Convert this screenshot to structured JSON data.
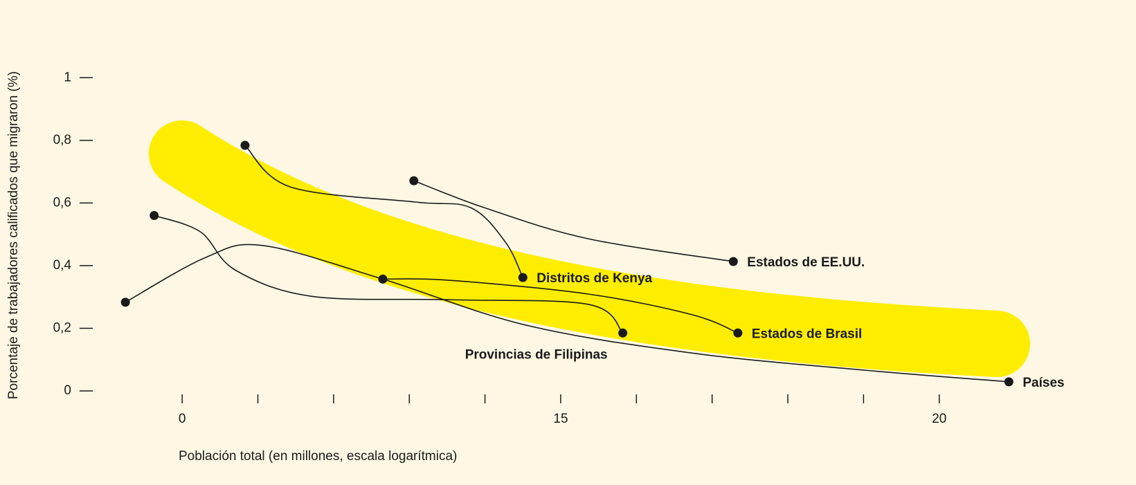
{
  "chart_data": {
    "type": "line",
    "y_label": "Porcentaje de trabajadores calificados que migraron (%)",
    "x_label": "Población total (en millones, escala logarítmica)",
    "xlim": [
      -1.3,
      11.2
    ],
    "ylim": [
      0,
      1.1
    ],
    "xticks": [
      0,
      {
        "value": 5,
        "label": "15"
      },
      {
        "value": 10,
        "label": "20"
      }
    ],
    "xminor_ticks": [
      1,
      2,
      3,
      4,
      6,
      7,
      8,
      9
    ],
    "yticks": [
      0,
      {
        "value": 0.2,
        "label": "0,2"
      },
      {
        "value": 0.4,
        "label": "0,4"
      },
      {
        "value": 0.6,
        "label": "0,6"
      },
      {
        "value": 0.8,
        "label": "0,8"
      },
      1
    ],
    "color": "#1a1a1a",
    "series": [
      {
        "name": "Países",
        "label_position": "right",
        "x": [
          -0.75,
          0.31,
          1.07,
          2.65,
          4.54,
          6.73,
          9.02,
          10.92
        ],
        "values": [
          0.283,
          0.426,
          0.464,
          0.357,
          0.21,
          0.121,
          0.066,
          0.029
        ]
      },
      {
        "name": "Provincias de Filipinas",
        "label_position": "below",
        "x": [
          -0.37,
          0.24,
          0.7,
          1.71,
          3.54,
          5.37,
          5.82
        ],
        "values": [
          0.56,
          0.508,
          0.386,
          0.302,
          0.291,
          0.276,
          0.185
        ]
      },
      {
        "name": "Distritos de Kenya",
        "label_position": "right",
        "x": [
          0.83,
          1.43,
          3.08,
          3.81,
          4.27,
          4.5
        ],
        "values": [
          0.784,
          0.651,
          0.603,
          0.585,
          0.475,
          0.362
        ]
      },
      {
        "name": "Estados de EE.UU.",
        "label_position": "right",
        "x": [
          3.06,
          3.99,
          5.36,
          7.28
        ],
        "values": [
          0.671,
          0.585,
          0.486,
          0.413
        ]
      },
      {
        "name": "Estados de Brasil",
        "label_position": "right",
        "x": [
          2.65,
          3.54,
          5.37,
          6.74,
          7.34
        ],
        "values": [
          0.357,
          0.353,
          0.309,
          0.243,
          0.185
        ]
      }
    ]
  }
}
